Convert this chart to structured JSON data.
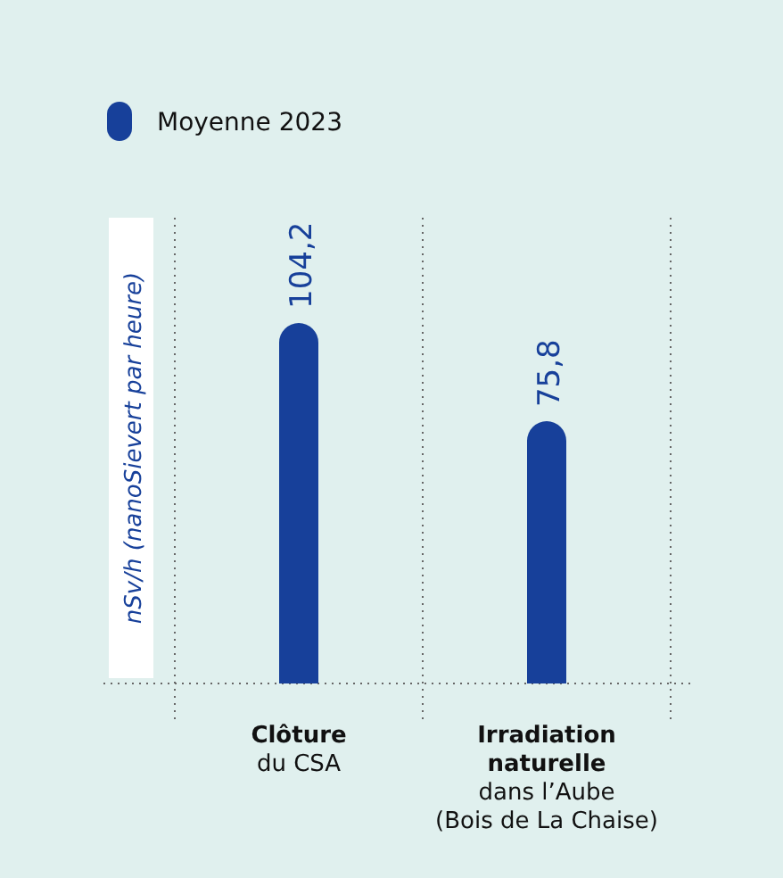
{
  "chart_data": {
    "type": "bar",
    "categories": [
      "Clôture\ndu CSA",
      "Irradiation\nnaturelle\ndans l’Aube\n(Bois de La Chaise)"
    ],
    "series": [
      {
        "name": "Moyenne 2023",
        "color": "#17409a",
        "values": [
          104.2,
          75.8
        ],
        "value_labels": [
          "104,2",
          "75,8"
        ]
      }
    ],
    "ylabel": "nSv/h (nanoSievert par heure)",
    "legend": "top left"
  }
}
